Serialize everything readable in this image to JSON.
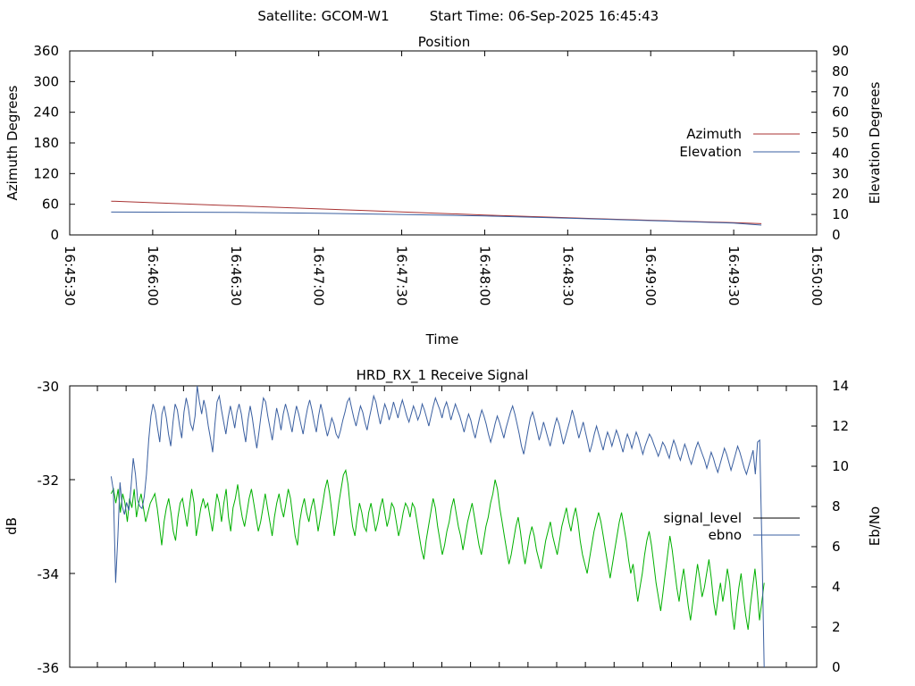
{
  "header": {
    "satellite": "Satellite: GCOM-W1",
    "start_time": "Start Time: 06-Sep-2025 16:45:43"
  },
  "chart_data": [
    {
      "type": "line",
      "title": "Position",
      "xlabel": "Time",
      "ylabel": "Azimuth Degrees",
      "y2label": "Elevation Degrees",
      "x_ticks": [
        "16:45:30",
        "16:46:00",
        "16:46:30",
        "16:47:00",
        "16:47:30",
        "16:48:00",
        "16:48:30",
        "16:49:00",
        "16:49:30",
        "16:50:00"
      ],
      "y_ticks": [
        "360",
        "300",
        "240",
        "180",
        "120",
        "60",
        "0"
      ],
      "y2_ticks": [
        "90",
        "80",
        "70",
        "60",
        "50",
        "40",
        "30",
        "20",
        "10",
        "0"
      ],
      "xlim": [
        "16:45:30",
        "16:50:00"
      ],
      "ylim": [
        0,
        360
      ],
      "y2lim": [
        0,
        90
      ],
      "legend_position": "right",
      "series": [
        {
          "name": "Azimuth",
          "axis": "left",
          "color": "#a83232",
          "x": [
            "16:45:45",
            "16:46:30",
            "16:47:15",
            "16:48:00",
            "16:48:45",
            "16:49:30",
            "16:49:40"
          ],
          "y": [
            66,
            57,
            48,
            39,
            31,
            24,
            22
          ]
        },
        {
          "name": "Elevation",
          "axis": "right",
          "color": "#3a5fa0",
          "x": [
            "16:45:45",
            "16:46:30",
            "16:47:00",
            "16:47:30",
            "16:48:00",
            "16:48:30",
            "16:49:00",
            "16:49:30",
            "16:49:40"
          ],
          "y": [
            11.2,
            11.0,
            10.6,
            10.0,
            9.3,
            8.2,
            7.0,
            5.8,
            4.8
          ]
        }
      ]
    },
    {
      "type": "line",
      "title": "HRD_RX_1 Receive Signal",
      "xlabel": "",
      "ylabel": "dB",
      "y2label": "Eb/No",
      "y_ticks": [
        "-30",
        "-32",
        "-34",
        "-36"
      ],
      "y2_ticks": [
        "14",
        "12",
        "10",
        "8",
        "6",
        "4",
        "2",
        "0"
      ],
      "x_tick_count": 25,
      "ylim": [
        -36,
        -30
      ],
      "y2lim": [
        0,
        14
      ],
      "legend_position": "right",
      "series": [
        {
          "name": "signal_level",
          "axis": "left",
          "color": "#00b000",
          "legend_color": "#000000",
          "x_range": [
            "16:45:45",
            "16:49:41"
          ],
          "y": [
            -32.3,
            -32.2,
            -32.5,
            -32.2,
            -32.7,
            -32.3,
            -32.5,
            -32.9,
            -32.4,
            -32.6,
            -32.2,
            -32.8,
            -32.5,
            -32.3,
            -32.6,
            -32.9,
            -32.7,
            -32.5,
            -32.4,
            -32.3,
            -32.6,
            -33.0,
            -33.4,
            -32.9,
            -32.6,
            -32.4,
            -32.7,
            -33.1,
            -33.3,
            -32.8,
            -32.5,
            -32.4,
            -32.7,
            -33.0,
            -32.6,
            -32.2,
            -32.5,
            -33.2,
            -32.9,
            -32.6,
            -32.4,
            -32.6,
            -32.5,
            -32.8,
            -33.1,
            -32.7,
            -32.3,
            -32.5,
            -32.9,
            -32.5,
            -32.2,
            -32.8,
            -33.1,
            -32.6,
            -32.4,
            -32.1,
            -32.5,
            -32.8,
            -33.0,
            -32.7,
            -32.4,
            -32.2,
            -32.5,
            -32.8,
            -33.1,
            -32.9,
            -32.6,
            -32.3,
            -32.6,
            -32.9,
            -33.2,
            -32.8,
            -32.5,
            -32.3,
            -32.6,
            -32.8,
            -32.5,
            -32.2,
            -32.4,
            -32.8,
            -33.2,
            -33.4,
            -32.9,
            -32.6,
            -32.4,
            -32.7,
            -32.9,
            -32.6,
            -32.4,
            -32.7,
            -33.1,
            -32.8,
            -32.5,
            -32.2,
            -32.0,
            -32.3,
            -32.7,
            -33.2,
            -32.9,
            -32.5,
            -32.2,
            -31.9,
            -31.8,
            -32.1,
            -32.6,
            -33.0,
            -33.2,
            -32.8,
            -32.5,
            -32.7,
            -33.0,
            -33.1,
            -32.7,
            -32.5,
            -32.8,
            -33.1,
            -32.9,
            -32.6,
            -32.4,
            -32.7,
            -33.0,
            -32.8,
            -32.5,
            -32.6,
            -32.9,
            -33.2,
            -33.0,
            -32.7,
            -32.5,
            -32.6,
            -32.8,
            -32.5,
            -32.6,
            -32.9,
            -33.2,
            -33.5,
            -33.7,
            -33.3,
            -33.0,
            -32.7,
            -32.4,
            -32.6,
            -33.0,
            -33.3,
            -33.6,
            -33.4,
            -33.1,
            -32.9,
            -32.6,
            -32.4,
            -32.7,
            -33.0,
            -33.2,
            -33.5,
            -33.2,
            -32.9,
            -32.7,
            -32.5,
            -32.8,
            -33.1,
            -33.4,
            -33.6,
            -33.3,
            -33.0,
            -32.8,
            -32.5,
            -32.3,
            -32.0,
            -32.2,
            -32.6,
            -32.9,
            -33.2,
            -33.5,
            -33.8,
            -33.6,
            -33.3,
            -33.0,
            -32.8,
            -33.1,
            -33.5,
            -33.8,
            -33.5,
            -33.2,
            -33.0,
            -33.2,
            -33.5,
            -33.7,
            -33.9,
            -33.6,
            -33.3,
            -33.1,
            -32.9,
            -33.2,
            -33.4,
            -33.6,
            -33.3,
            -33.0,
            -32.8,
            -32.6,
            -32.9,
            -33.1,
            -32.8,
            -32.6,
            -32.9,
            -33.3,
            -33.6,
            -33.8,
            -34.0,
            -33.7,
            -33.4,
            -33.1,
            -32.9,
            -32.7,
            -32.9,
            -33.2,
            -33.5,
            -33.8,
            -34.1,
            -33.8,
            -33.5,
            -33.2,
            -32.9,
            -32.7,
            -33.0,
            -33.3,
            -33.7,
            -34.0,
            -33.8,
            -34.2,
            -34.6,
            -34.3,
            -34.0,
            -33.6,
            -33.3,
            -33.1,
            -33.4,
            -33.8,
            -34.2,
            -34.5,
            -34.8,
            -34.4,
            -34.0,
            -33.6,
            -33.2,
            -33.5,
            -33.9,
            -34.3,
            -34.6,
            -34.2,
            -33.9,
            -34.3,
            -34.7,
            -35.0,
            -34.6,
            -34.2,
            -33.8,
            -34.1,
            -34.5,
            -34.3,
            -34.0,
            -33.7,
            -34.1,
            -34.6,
            -34.9,
            -34.5,
            -34.2,
            -34.6,
            -34.3,
            -33.9,
            -34.2,
            -34.8,
            -35.2,
            -34.7,
            -34.3,
            -34.0,
            -34.5,
            -34.9,
            -35.2,
            -34.7,
            -34.3,
            -33.9,
            -34.4,
            -35.0,
            -34.6,
            -34.2
          ]
        },
        {
          "name": "ebno",
          "axis": "right",
          "color": "#3a5fa0",
          "legend_color": "#3a5fa0",
          "x_range": [
            "16:45:45",
            "16:49:41"
          ],
          "y": [
            9.5,
            8.8,
            4.2,
            6.5,
            9.2,
            8.0,
            7.6,
            8.2,
            7.8,
            9.0,
            10.4,
            9.6,
            8.3,
            8.0,
            7.9,
            8.5,
            9.6,
            11.3,
            12.5,
            13.1,
            12.7,
            11.9,
            11.2,
            12.6,
            13.0,
            12.4,
            11.6,
            11.0,
            12.2,
            13.1,
            12.8,
            12.0,
            11.4,
            12.7,
            13.4,
            12.9,
            12.1,
            11.8,
            12.5,
            14.0,
            13.2,
            12.6,
            13.3,
            12.8,
            12.0,
            11.4,
            10.7,
            12.1,
            13.2,
            13.5,
            12.8,
            12.2,
            11.6,
            12.4,
            13.0,
            12.5,
            11.9,
            12.7,
            13.1,
            12.6,
            11.8,
            11.2,
            12.3,
            13.0,
            12.4,
            11.6,
            10.9,
            11.7,
            12.6,
            13.4,
            13.2,
            12.5,
            11.9,
            11.3,
            12.1,
            12.9,
            12.4,
            11.8,
            12.6,
            13.1,
            12.7,
            12.2,
            11.7,
            12.4,
            13.0,
            12.6,
            12.1,
            11.6,
            12.3,
            12.9,
            13.3,
            12.8,
            12.2,
            11.7,
            12.5,
            13.1,
            12.6,
            12.0,
            11.5,
            11.9,
            12.4,
            12.1,
            11.6,
            11.4,
            11.8,
            12.3,
            12.7,
            13.2,
            13.4,
            12.9,
            12.4,
            12.0,
            12.5,
            13.0,
            12.7,
            12.2,
            11.8,
            12.4,
            12.9,
            13.5,
            13.2,
            12.6,
            12.1,
            12.6,
            13.1,
            12.8,
            12.3,
            12.7,
            13.2,
            12.8,
            12.4,
            12.9,
            13.3,
            12.9,
            12.5,
            12.2,
            12.6,
            13.0,
            12.7,
            12.3,
            12.6,
            13.1,
            12.8,
            12.4,
            12.0,
            12.5,
            13.0,
            13.4,
            13.1,
            12.8,
            12.4,
            12.9,
            13.2,
            12.8,
            12.3,
            12.7,
            13.1,
            12.8,
            12.5,
            12.1,
            11.7,
            12.2,
            12.6,
            12.3,
            11.8,
            11.4,
            11.9,
            12.4,
            12.8,
            12.5,
            12.1,
            11.6,
            11.2,
            11.6,
            12.1,
            12.5,
            12.2,
            11.8,
            11.4,
            11.9,
            12.3,
            12.7,
            13.0,
            12.6,
            12.1,
            11.6,
            11.0,
            10.6,
            11.2,
            11.8,
            12.4,
            12.7,
            12.3,
            11.8,
            11.3,
            11.7,
            12.2,
            11.8,
            11.4,
            11.0,
            11.5,
            12.0,
            12.4,
            12.1,
            11.6,
            11.1,
            11.5,
            11.9,
            12.3,
            12.8,
            12.4,
            11.9,
            11.4,
            11.8,
            12.2,
            11.7,
            11.2,
            10.7,
            11.1,
            11.6,
            12.0,
            11.6,
            11.2,
            10.8,
            11.3,
            11.7,
            11.4,
            11.0,
            11.4,
            11.8,
            11.5,
            11.1,
            10.7,
            11.2,
            11.6,
            11.3,
            10.9,
            11.3,
            11.7,
            11.4,
            11.0,
            10.6,
            11.0,
            11.3,
            11.6,
            11.4,
            11.1,
            10.8,
            10.5,
            10.8,
            11.2,
            11.0,
            10.7,
            10.4,
            10.9,
            11.3,
            11.0,
            10.6,
            10.3,
            10.7,
            11.1,
            10.8,
            10.4,
            10.1,
            10.5,
            10.9,
            11.2,
            10.9,
            10.6,
            10.3,
            9.9,
            10.3,
            10.7,
            10.4,
            10.0,
            9.7,
            10.1,
            10.5,
            10.9,
            10.6,
            10.2,
            9.8,
            10.2,
            10.6,
            11.0,
            10.7,
            10.3,
            9.9,
            9.6,
            10.0,
            10.4,
            10.8,
            9.6,
            11.2,
            11.3,
            6.0,
            0.0
          ]
        }
      ]
    }
  ]
}
